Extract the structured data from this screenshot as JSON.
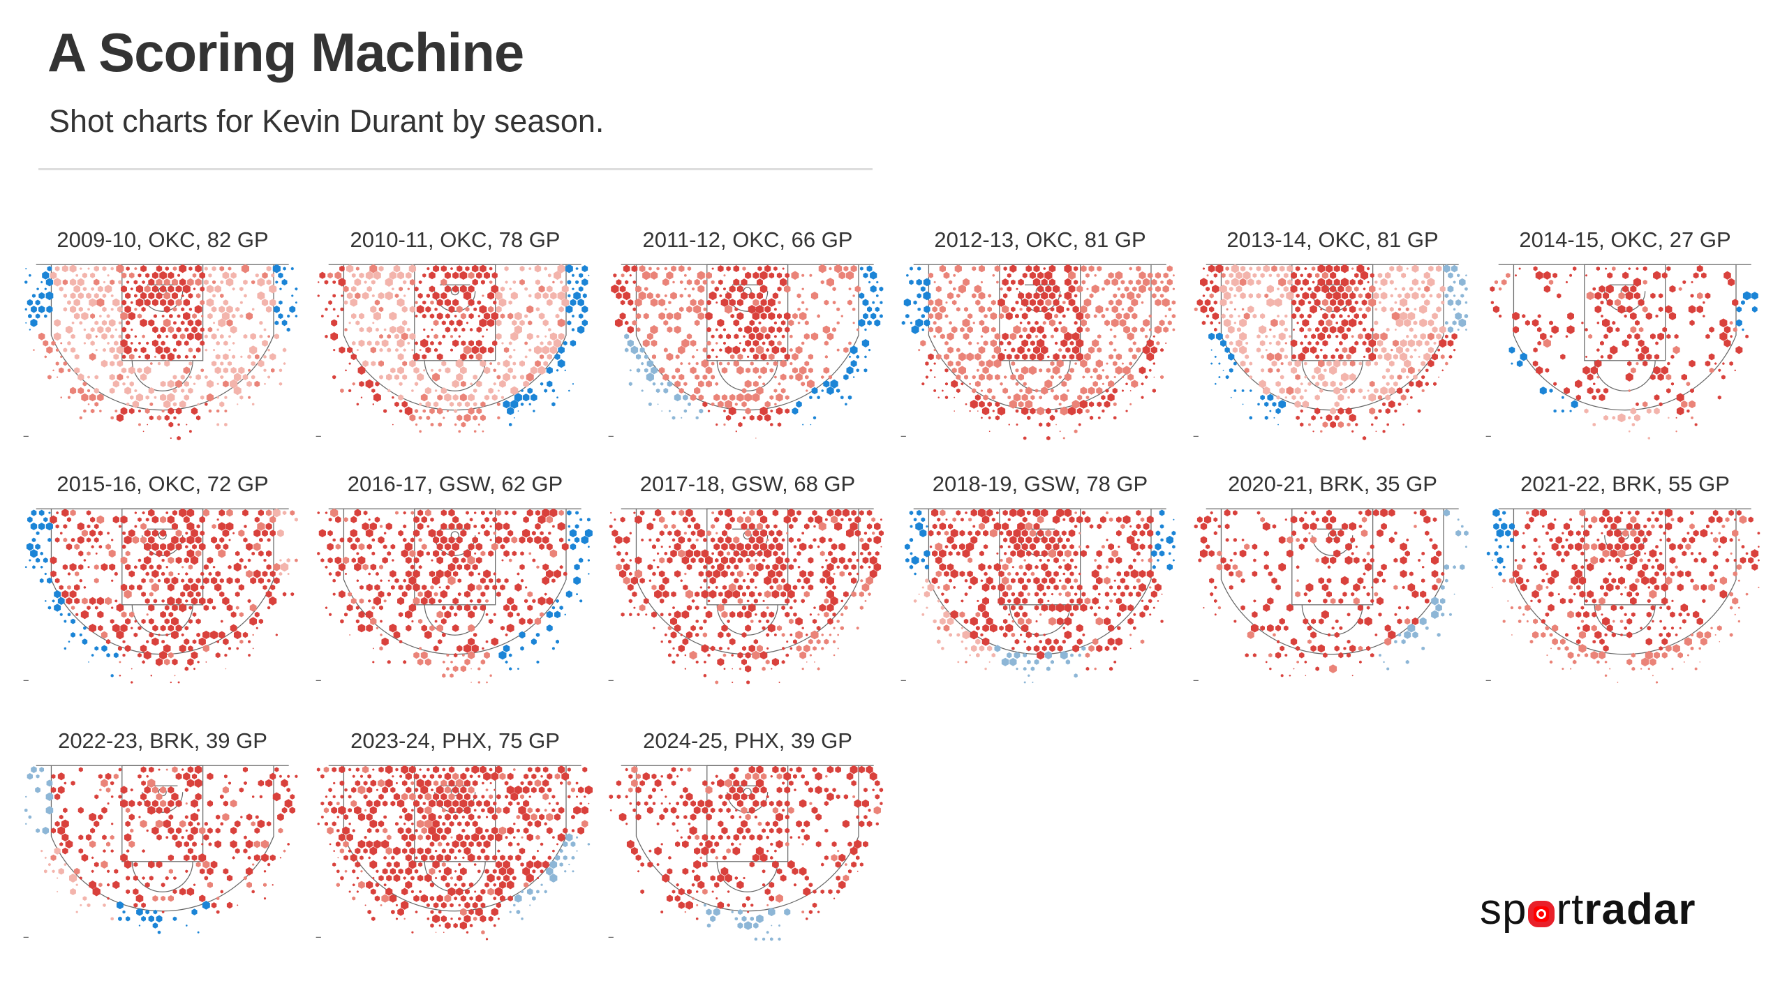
{
  "header": {
    "title": "A Scoring Machine",
    "subtitle": "Shot charts for Kevin Durant by season."
  },
  "logo": {
    "text_light_1": "sp",
    "text_light_2": "rt",
    "text_bold": "radar"
  },
  "colors": {
    "hot": "#d9413c",
    "warm": "#ea8378",
    "light": "#f3b4ac",
    "cold": "#1b84d6",
    "coldlight": "#8db6d6",
    "court_line": "#666666"
  },
  "chart_data": {
    "type": "hexbin-shot-chart",
    "title": "A Scoring Machine",
    "subtitle": "Shot charts for Kevin Durant by season.",
    "legend": "none",
    "color_scale": [
      "cold",
      "coldlight",
      "light",
      "warm",
      "hot"
    ],
    "panels": [
      {
        "label": "2009-10, OKC, 82 GP",
        "season": "2009-10",
        "team": "OKC",
        "gp": 82,
        "zones": {
          "paint": "hot",
          "mid": "light",
          "arc": "hot",
          "left_wing": "warm",
          "right_wing": "light",
          "left_corner": "cold",
          "right_corner": "cold"
        },
        "density": 0.9
      },
      {
        "label": "2010-11, OKC, 78 GP",
        "season": "2010-11",
        "team": "OKC",
        "gp": 78,
        "zones": {
          "paint": "hot",
          "mid": "light",
          "arc": "warm",
          "left_wing": "hot",
          "right_wing": "cold",
          "left_corner": "hot",
          "right_corner": "cold"
        },
        "density": 0.85
      },
      {
        "label": "2011-12, OKC, 66 GP",
        "season": "2011-12",
        "team": "OKC",
        "gp": 66,
        "zones": {
          "paint": "hot",
          "mid": "warm",
          "arc": "hot",
          "left_wing": "coldlight",
          "right_wing": "cold",
          "left_corner": "hot",
          "right_corner": "cold"
        },
        "density": 0.8
      },
      {
        "label": "2012-13, OKC, 81 GP",
        "season": "2012-13",
        "team": "OKC",
        "gp": 81,
        "zones": {
          "paint": "hot",
          "mid": "warm",
          "arc": "hot",
          "left_wing": "hot",
          "right_wing": "hot",
          "left_corner": "cold",
          "right_corner": "warm"
        },
        "density": 0.85
      },
      {
        "label": "2013-14, OKC, 81 GP",
        "season": "2013-14",
        "team": "OKC",
        "gp": 81,
        "zones": {
          "paint": "hot",
          "mid": "light",
          "arc": "hot",
          "left_wing": "cold",
          "right_wing": "hot",
          "left_corner": "hot",
          "right_corner": "coldlight"
        },
        "density": 0.95
      },
      {
        "label": "2014-15, OKC, 27 GP",
        "season": "2014-15",
        "team": "OKC",
        "gp": 27,
        "zones": {
          "paint": "hot",
          "mid": "hot",
          "arc": "light",
          "left_wing": "cold",
          "right_wing": "hot",
          "left_corner": "hot",
          "right_corner": "cold"
        },
        "density": 0.4
      },
      {
        "label": "2015-16, OKC, 72 GP",
        "season": "2015-16",
        "team": "OKC",
        "gp": 72,
        "zones": {
          "paint": "hot",
          "mid": "hot",
          "arc": "hot",
          "left_wing": "cold",
          "right_wing": "hot",
          "left_corner": "cold",
          "right_corner": "light"
        },
        "density": 0.8
      },
      {
        "label": "2016-17, GSW, 62 GP",
        "season": "2016-17",
        "team": "GSW",
        "gp": 62,
        "zones": {
          "paint": "hot",
          "mid": "hot",
          "arc": "warm",
          "left_wing": "hot",
          "right_wing": "cold",
          "left_corner": "hot",
          "right_corner": "cold"
        },
        "density": 0.75
      },
      {
        "label": "2017-18, GSW, 68 GP",
        "season": "2017-18",
        "team": "GSW",
        "gp": 68,
        "zones": {
          "paint": "hot",
          "mid": "hot",
          "arc": "hot",
          "left_wing": "hot",
          "right_wing": "warm",
          "left_corner": "hot",
          "right_corner": "hot"
        },
        "density": 0.85
      },
      {
        "label": "2018-19, GSW, 78 GP",
        "season": "2018-19",
        "team": "GSW",
        "gp": 78,
        "zones": {
          "paint": "hot",
          "mid": "hot",
          "arc": "coldlight",
          "left_wing": "light",
          "right_wing": "hot",
          "left_corner": "cold",
          "right_corner": "cold"
        },
        "density": 0.9
      },
      {
        "label": "2020-21, BRK, 35 GP",
        "season": "2020-21",
        "team": "BRK",
        "gp": 35,
        "zones": {
          "paint": "hot",
          "mid": "hot",
          "arc": "hot",
          "left_wing": "hot",
          "right_wing": "coldlight",
          "left_corner": "hot",
          "right_corner": "coldlight"
        },
        "density": 0.5
      },
      {
        "label": "2021-22, BRK, 55 GP",
        "season": "2021-22",
        "team": "BRK",
        "gp": 55,
        "zones": {
          "paint": "hot",
          "mid": "hot",
          "arc": "warm",
          "left_wing": "warm",
          "right_wing": "warm",
          "left_corner": "cold",
          "right_corner": "hot"
        },
        "density": 0.7
      },
      {
        "label": "2022-23, BRK, 39 GP",
        "season": "2022-23",
        "team": "BRK",
        "gp": 39,
        "zones": {
          "paint": "hot",
          "mid": "hot",
          "arc": "cold",
          "left_wing": "light",
          "right_wing": "hot",
          "left_corner": "coldlight",
          "right_corner": "hot"
        },
        "density": 0.55
      },
      {
        "label": "2023-24, PHX, 75 GP",
        "season": "2023-24",
        "team": "PHX",
        "gp": 75,
        "zones": {
          "paint": "hot",
          "mid": "hot",
          "arc": "hot",
          "left_wing": "hot",
          "right_wing": "coldlight",
          "left_corner": "hot",
          "right_corner": "hot"
        },
        "density": 0.95
      },
      {
        "label": "2024-25, PHX, 39 GP",
        "season": "2024-25",
        "team": "PHX",
        "gp": 39,
        "zones": {
          "paint": "hot",
          "mid": "hot",
          "arc": "coldlight",
          "left_wing": "hot",
          "right_wing": "hot",
          "left_corner": "hot",
          "right_corner": "hot"
        },
        "density": 0.6
      }
    ]
  }
}
